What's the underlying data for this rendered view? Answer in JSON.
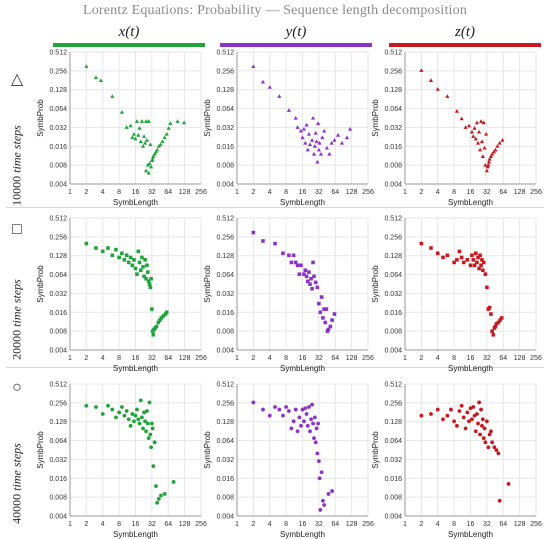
{
  "title": "Lorentz Equations: Probability — Sequence length decomposition",
  "columns": [
    {
      "label": "x(t)",
      "color": "#1fa33a"
    },
    {
      "label": "y(t)",
      "color": "#8b33c9"
    },
    {
      "label": "z(t)",
      "color": "#c8191e"
    }
  ],
  "rows": [
    {
      "marker": "△",
      "count": "10000",
      "unit": "time steps",
      "shape": "triangle"
    },
    {
      "marker": "□",
      "count": "20000",
      "unit": "time steps",
      "shape": "square"
    },
    {
      "marker": "○",
      "count": "40000",
      "unit": "time steps",
      "shape": "circle"
    }
  ],
  "axes": {
    "xlabel": "SymbLength",
    "ylabel": "SymbProb",
    "xscale": "log2",
    "yscale": "log2",
    "xlim": [
      1,
      256
    ],
    "ylim": [
      0.004,
      0.512
    ],
    "xticks": [
      "1",
      "2",
      "4",
      "8",
      "16",
      "32",
      "64",
      "128",
      "256"
    ],
    "yticks": [
      "0.004",
      "0.008",
      "0.016",
      "0.032",
      "0.064",
      "0.128",
      "0.256",
      "0.512"
    ],
    "grid": true
  },
  "chart_data": [
    {
      "type": "scatter",
      "row": 0,
      "col": 0,
      "points": [
        [
          2,
          0.3
        ],
        [
          3,
          0.2
        ],
        [
          3.7,
          0.18
        ],
        [
          6,
          0.1
        ],
        [
          9,
          0.056
        ],
        [
          11,
          0.032
        ],
        [
          13,
          0.034
        ],
        [
          14,
          0.022
        ],
        [
          15,
          0.025
        ],
        [
          16,
          0.021
        ],
        [
          17,
          0.04
        ],
        [
          18,
          0.024
        ],
        [
          19,
          0.031
        ],
        [
          20,
          0.019
        ],
        [
          21,
          0.04
        ],
        [
          22,
          0.016
        ],
        [
          23,
          0.023
        ],
        [
          24,
          0.018
        ],
        [
          25,
          0.04
        ],
        [
          25,
          0.0065
        ],
        [
          26,
          0.02
        ],
        [
          27,
          0.008
        ],
        [
          28,
          0.04
        ],
        [
          28,
          0.006
        ],
        [
          29,
          0.0085
        ],
        [
          30,
          0.017
        ],
        [
          31,
          0.0075
        ],
        [
          32,
          0.0095
        ],
        [
          33,
          0.01
        ],
        [
          34,
          0.011
        ],
        [
          36,
          0.012
        ],
        [
          38,
          0.013
        ],
        [
          40,
          0.014
        ],
        [
          43,
          0.016
        ],
        [
          46,
          0.017
        ],
        [
          50,
          0.019
        ],
        [
          55,
          0.022
        ],
        [
          60,
          0.025
        ],
        [
          65,
          0.031
        ],
        [
          70,
          0.037
        ],
        [
          95,
          0.04
        ],
        [
          125,
          0.038
        ]
      ]
    },
    {
      "type": "scatter",
      "row": 0,
      "col": 1,
      "points": [
        [
          2,
          0.3
        ],
        [
          3,
          0.17
        ],
        [
          4,
          0.14
        ],
        [
          6,
          0.1
        ],
        [
          9,
          0.06
        ],
        [
          12,
          0.045
        ],
        [
          13,
          0.032
        ],
        [
          15,
          0.028
        ],
        [
          16,
          0.022
        ],
        [
          17,
          0.03
        ],
        [
          18,
          0.018
        ],
        [
          19,
          0.035
        ],
        [
          20,
          0.014
        ],
        [
          21,
          0.025
        ],
        [
          22,
          0.017
        ],
        [
          24,
          0.02
        ],
        [
          25,
          0.045
        ],
        [
          26,
          0.012
        ],
        [
          27,
          0.016
        ],
        [
          28,
          0.026
        ],
        [
          29,
          0.019
        ],
        [
          30,
          0.009
        ],
        [
          31,
          0.037
        ],
        [
          32,
          0.014
        ],
        [
          33,
          0.018
        ],
        [
          35,
          0.012
        ],
        [
          37,
          0.022
        ],
        [
          40,
          0.028
        ],
        [
          45,
          0.015
        ],
        [
          50,
          0.012
        ],
        [
          55,
          0.018
        ],
        [
          62,
          0.02
        ],
        [
          72,
          0.024
        ],
        [
          85,
          0.018
        ],
        [
          105,
          0.022
        ],
        [
          120,
          0.03
        ]
      ]
    },
    {
      "type": "scatter",
      "row": 0,
      "col": 2,
      "points": [
        [
          2,
          0.26
        ],
        [
          3,
          0.18
        ],
        [
          4,
          0.13
        ],
        [
          6,
          0.1
        ],
        [
          9,
          0.058
        ],
        [
          11,
          0.044
        ],
        [
          13,
          0.032
        ],
        [
          15,
          0.034
        ],
        [
          17,
          0.027
        ],
        [
          18,
          0.023
        ],
        [
          19,
          0.031
        ],
        [
          20,
          0.021
        ],
        [
          21,
          0.038
        ],
        [
          22,
          0.018
        ],
        [
          23,
          0.027
        ],
        [
          24,
          0.014
        ],
        [
          25,
          0.04
        ],
        [
          26,
          0.019
        ],
        [
          27,
          0.011
        ],
        [
          28,
          0.038
        ],
        [
          29,
          0.015
        ],
        [
          30,
          0.008
        ],
        [
          31,
          0.025
        ],
        [
          32,
          0.0065
        ],
        [
          33,
          0.0075
        ],
        [
          34,
          0.008
        ],
        [
          35,
          0.009
        ],
        [
          36,
          0.01
        ],
        [
          38,
          0.011
        ],
        [
          40,
          0.012
        ],
        [
          43,
          0.013
        ],
        [
          46,
          0.014
        ],
        [
          50,
          0.016
        ],
        [
          55,
          0.018
        ],
        [
          62,
          0.02
        ]
      ]
    },
    {
      "type": "scatter",
      "row": 1,
      "col": 0,
      "points": [
        [
          2,
          0.2
        ],
        [
          3,
          0.17
        ],
        [
          4,
          0.15
        ],
        [
          5,
          0.17
        ],
        [
          6,
          0.13
        ],
        [
          7,
          0.16
        ],
        [
          8,
          0.12
        ],
        [
          9,
          0.14
        ],
        [
          10,
          0.11
        ],
        [
          11,
          0.13
        ],
        [
          12,
          0.1
        ],
        [
          13,
          0.12
        ],
        [
          14,
          0.09
        ],
        [
          15,
          0.11
        ],
        [
          16,
          0.08
        ],
        [
          17,
          0.065
        ],
        [
          18,
          0.15
        ],
        [
          19,
          0.1
        ],
        [
          20,
          0.075
        ],
        [
          21,
          0.12
        ],
        [
          22,
          0.085
        ],
        [
          23,
          0.06
        ],
        [
          24,
          0.11
        ],
        [
          25,
          0.055
        ],
        [
          26,
          0.09
        ],
        [
          27,
          0.07
        ],
        [
          28,
          0.05
        ],
        [
          29,
          0.045
        ],
        [
          30,
          0.04
        ],
        [
          31,
          0.055
        ],
        [
          32,
          0.018
        ],
        [
          33,
          0.008
        ],
        [
          34,
          0.007
        ],
        [
          35,
          0.0085
        ],
        [
          37,
          0.009
        ],
        [
          39,
          0.0095
        ],
        [
          42,
          0.011
        ],
        [
          45,
          0.012
        ],
        [
          48,
          0.013
        ],
        [
          52,
          0.014
        ],
        [
          57,
          0.015
        ],
        [
          60,
          0.016
        ]
      ]
    },
    {
      "type": "scatter",
      "row": 1,
      "col": 1,
      "points": [
        [
          2,
          0.3
        ],
        [
          3,
          0.22
        ],
        [
          5,
          0.2
        ],
        [
          7,
          0.14
        ],
        [
          9,
          0.13
        ],
        [
          10,
          0.1
        ],
        [
          11,
          0.13
        ],
        [
          12,
          0.1
        ],
        [
          13,
          0.09
        ],
        [
          14,
          0.065
        ],
        [
          15,
          0.09
        ],
        [
          17,
          0.065
        ],
        [
          18,
          0.075
        ],
        [
          19,
          0.06
        ],
        [
          20,
          0.05
        ],
        [
          21,
          0.07
        ],
        [
          22,
          0.045
        ],
        [
          23,
          0.055
        ],
        [
          24,
          0.038
        ],
        [
          25,
          0.1
        ],
        [
          26,
          0.06
        ],
        [
          28,
          0.048
        ],
        [
          30,
          0.04
        ],
        [
          32,
          0.022
        ],
        [
          34,
          0.016
        ],
        [
          36,
          0.028
        ],
        [
          38,
          0.013
        ],
        [
          40,
          0.018
        ],
        [
          42,
          0.011
        ],
        [
          44,
          0.018
        ],
        [
          46,
          0.008
        ],
        [
          48,
          0.0085
        ],
        [
          52,
          0.0095
        ],
        [
          56,
          0.012
        ],
        [
          62,
          0.015
        ]
      ]
    },
    {
      "type": "scatter",
      "row": 1,
      "col": 2,
      "points": [
        [
          2,
          0.2
        ],
        [
          3,
          0.17
        ],
        [
          4,
          0.14
        ],
        [
          5,
          0.12
        ],
        [
          6,
          0.13
        ],
        [
          8,
          0.1
        ],
        [
          9,
          0.11
        ],
        [
          10,
          0.15
        ],
        [
          11,
          0.12
        ],
        [
          12,
          0.1
        ],
        [
          14,
          0.11
        ],
        [
          16,
          0.09
        ],
        [
          17,
          0.13
        ],
        [
          18,
          0.11
        ],
        [
          19,
          0.09
        ],
        [
          20,
          0.14
        ],
        [
          21,
          0.1
        ],
        [
          22,
          0.12
        ],
        [
          23,
          0.08
        ],
        [
          24,
          0.13
        ],
        [
          25,
          0.09
        ],
        [
          26,
          0.11
        ],
        [
          27,
          0.075
        ],
        [
          28,
          0.1
        ],
        [
          30,
          0.065
        ],
        [
          32,
          0.04
        ],
        [
          34,
          0.018
        ],
        [
          36,
          0.019
        ],
        [
          38,
          0.015
        ],
        [
          40,
          0.008
        ],
        [
          42,
          0.007
        ],
        [
          44,
          0.009
        ],
        [
          46,
          0.0095
        ],
        [
          48,
          0.0105
        ],
        [
          52,
          0.011
        ],
        [
          56,
          0.012
        ],
        [
          60,
          0.013
        ]
      ]
    },
    {
      "type": "scatter",
      "row": 2,
      "col": 0,
      "points": [
        [
          2,
          0.23
        ],
        [
          3,
          0.22
        ],
        [
          4,
          0.17
        ],
        [
          5,
          0.23
        ],
        [
          6,
          0.2
        ],
        [
          7,
          0.15
        ],
        [
          8,
          0.18
        ],
        [
          9,
          0.22
        ],
        [
          10,
          0.16
        ],
        [
          11,
          0.19
        ],
        [
          12,
          0.14
        ],
        [
          13,
          0.11
        ],
        [
          14,
          0.17
        ],
        [
          15,
          0.13
        ],
        [
          16,
          0.16
        ],
        [
          17,
          0.2
        ],
        [
          18,
          0.14
        ],
        [
          19,
          0.12
        ],
        [
          20,
          0.28
        ],
        [
          21,
          0.15
        ],
        [
          22,
          0.1
        ],
        [
          23,
          0.18
        ],
        [
          24,
          0.13
        ],
        [
          25,
          0.09
        ],
        [
          26,
          0.19
        ],
        [
          27,
          0.12
        ],
        [
          28,
          0.07
        ],
        [
          29,
          0.26
        ],
        [
          30,
          0.08
        ],
        [
          31,
          0.05
        ],
        [
          32,
          0.12
        ],
        [
          33,
          0.1
        ],
        [
          34,
          0.025
        ],
        [
          36,
          0.06
        ],
        [
          38,
          0.012
        ],
        [
          40,
          0.0065
        ],
        [
          43,
          0.0075
        ],
        [
          47,
          0.0085
        ],
        [
          55,
          0.009
        ],
        [
          80,
          0.014
        ]
      ]
    },
    {
      "type": "scatter",
      "row": 2,
      "col": 1,
      "points": [
        [
          2,
          0.26
        ],
        [
          3,
          0.2
        ],
        [
          4,
          0.16
        ],
        [
          5,
          0.22
        ],
        [
          6,
          0.2
        ],
        [
          7,
          0.16
        ],
        [
          8,
          0.22
        ],
        [
          9,
          0.19
        ],
        [
          10,
          0.1
        ],
        [
          11,
          0.13
        ],
        [
          12,
          0.2
        ],
        [
          13,
          0.09
        ],
        [
          14,
          0.15
        ],
        [
          15,
          0.11
        ],
        [
          16,
          0.2
        ],
        [
          17,
          0.13
        ],
        [
          18,
          0.21
        ],
        [
          19,
          0.17
        ],
        [
          20,
          0.11
        ],
        [
          21,
          0.22
        ],
        [
          22,
          0.09
        ],
        [
          23,
          0.14
        ],
        [
          24,
          0.24
        ],
        [
          25,
          0.12
        ],
        [
          26,
          0.07
        ],
        [
          27,
          0.15
        ],
        [
          28,
          0.06
        ],
        [
          29,
          0.1
        ],
        [
          30,
          0.04
        ],
        [
          31,
          0.12
        ],
        [
          32,
          0.03
        ],
        [
          33,
          0.016
        ],
        [
          34,
          0.005
        ],
        [
          36,
          0.02
        ],
        [
          38,
          0.007
        ],
        [
          40,
          0.006
        ],
        [
          48,
          0.009
        ],
        [
          56,
          0.01
        ]
      ]
    },
    {
      "type": "scatter",
      "row": 2,
      "col": 2,
      "points": [
        [
          2,
          0.16
        ],
        [
          3,
          0.17
        ],
        [
          4,
          0.2
        ],
        [
          5,
          0.14
        ],
        [
          6,
          0.16
        ],
        [
          7,
          0.2
        ],
        [
          8,
          0.13
        ],
        [
          9,
          0.11
        ],
        [
          10,
          0.19
        ],
        [
          11,
          0.23
        ],
        [
          12,
          0.15
        ],
        [
          13,
          0.1
        ],
        [
          14,
          0.18
        ],
        [
          15,
          0.13
        ],
        [
          16,
          0.21
        ],
        [
          17,
          0.14
        ],
        [
          18,
          0.22
        ],
        [
          19,
          0.16
        ],
        [
          20,
          0.09
        ],
        [
          21,
          0.17
        ],
        [
          22,
          0.12
        ],
        [
          23,
          0.26
        ],
        [
          24,
          0.08
        ],
        [
          25,
          0.2
        ],
        [
          26,
          0.11
        ],
        [
          27,
          0.14
        ],
        [
          28,
          0.07
        ],
        [
          29,
          0.1
        ],
        [
          30,
          0.06
        ],
        [
          32,
          0.13
        ],
        [
          34,
          0.05
        ],
        [
          36,
          0.08
        ],
        [
          38,
          0.09
        ],
        [
          40,
          0.06
        ],
        [
          44,
          0.05
        ],
        [
          48,
          0.045
        ],
        [
          52,
          0.04
        ],
        [
          55,
          0.007
        ],
        [
          80,
          0.013
        ]
      ]
    }
  ]
}
